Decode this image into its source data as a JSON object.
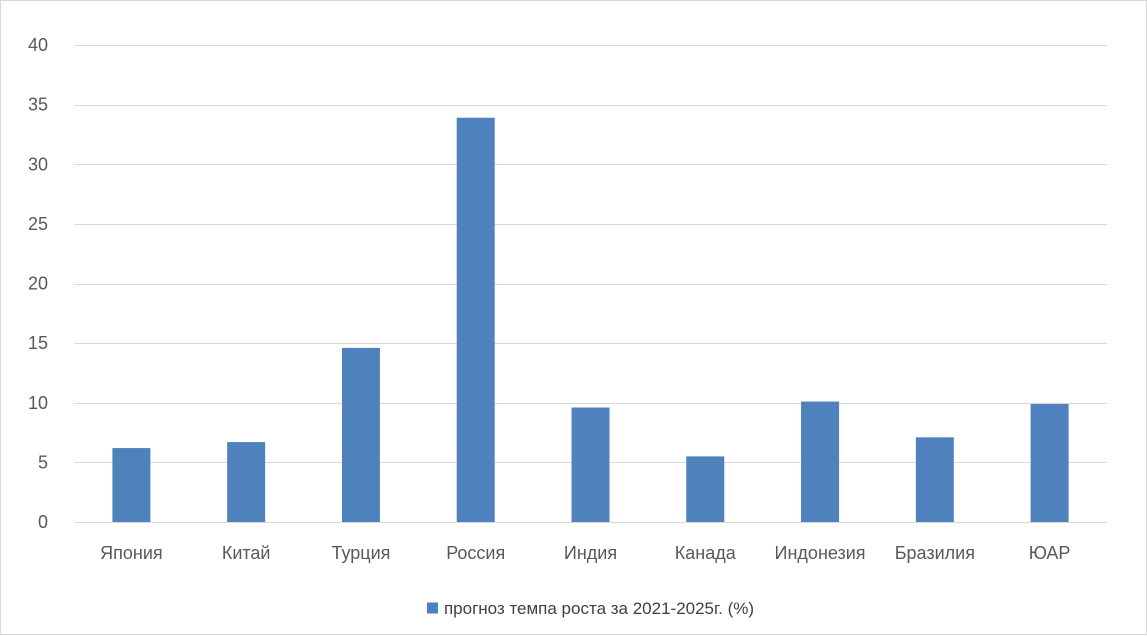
{
  "chart_data": {
    "type": "bar",
    "title": "",
    "xlabel": "",
    "ylabel": "",
    "categories": [
      "Япония",
      "Китай",
      "Турция",
      "Россия",
      "Индия",
      "Канада",
      "Индонезия",
      "Бразилия",
      "ЮАР"
    ],
    "series": [
      {
        "name": "прогноз темпа роста за 2021-2025г. (%)",
        "values": [
          6.2,
          6.7,
          14.6,
          33.9,
          9.6,
          5.5,
          10.1,
          7.1,
          9.9
        ],
        "color": "#4f81bd"
      }
    ],
    "ylim": [
      0,
      40
    ],
    "yticks": [
      0,
      5,
      10,
      15,
      20,
      25,
      30,
      35,
      40
    ],
    "grid": true,
    "legend": "bottom",
    "colors": {
      "bar": "#4f81bd",
      "grid": "#d9d9d9",
      "axis_text": "#595959",
      "legend_text": "#404040"
    }
  }
}
